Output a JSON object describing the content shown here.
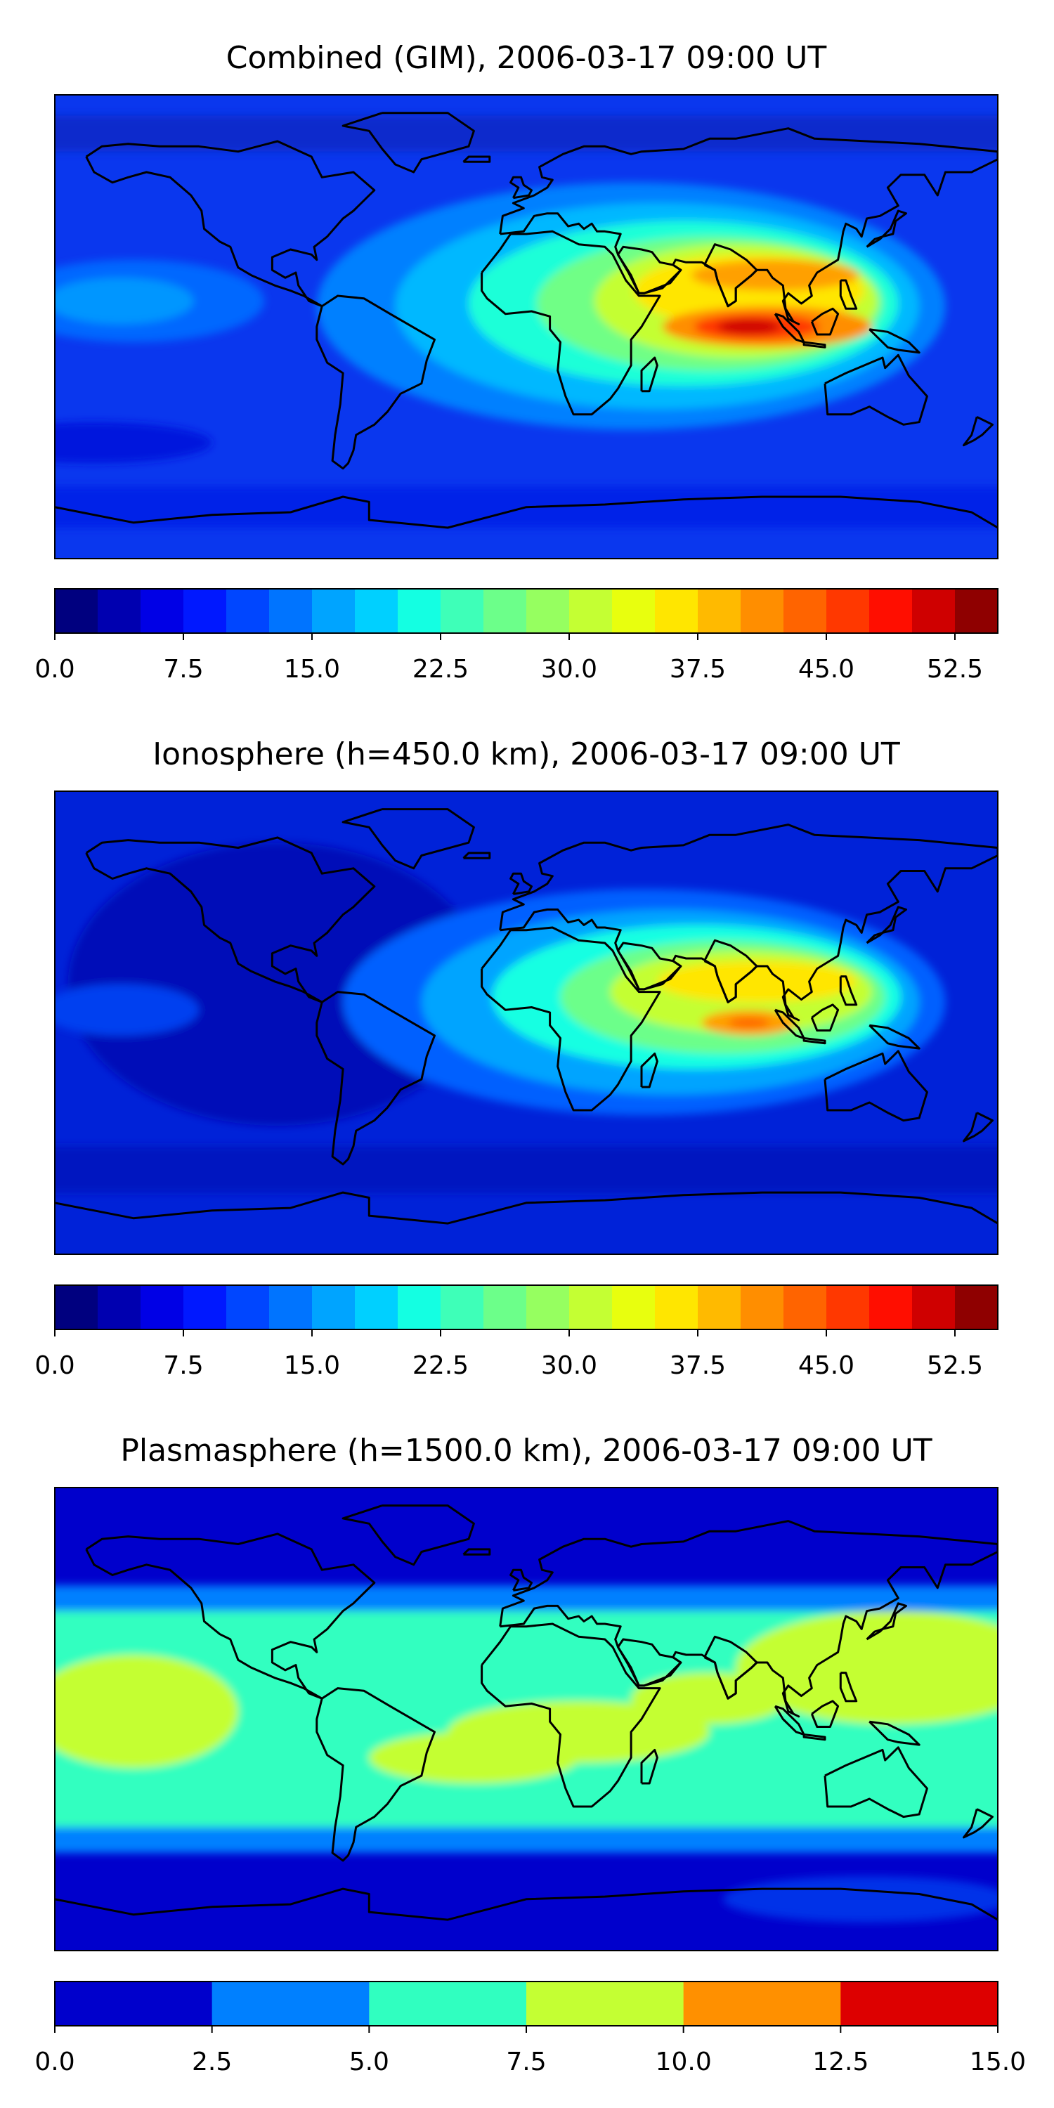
{
  "panels": [
    {
      "id": "combined",
      "title": "Combined (GIM), 2006-03-17 09:00 UT",
      "colorbar": {
        "colors": [
          "#00007f",
          "#0000b0",
          "#0000e6",
          "#0018ff",
          "#0046ff",
          "#0074ff",
          "#00a4ff",
          "#00d0ff",
          "#14ffe2",
          "#3effb8",
          "#6cff8a",
          "#96ff60",
          "#c4ff33",
          "#e8ff0e",
          "#ffe600",
          "#ffba00",
          "#ff8e00",
          "#ff6400",
          "#ff3800",
          "#ff0e00",
          "#cf0000",
          "#8f0000"
        ],
        "ticks": [
          "0.0",
          "7.5",
          "15.0",
          "22.5",
          "30.0",
          "37.5",
          "45.0",
          "52.5"
        ]
      },
      "field": {
        "background": "#0a37ee",
        "features": [
          {
            "type": "band",
            "lat": [
              -62,
              -78
            ],
            "color": "#0020e8"
          },
          {
            "type": "band",
            "lat": [
              82,
              68
            ],
            "color": "#0f2ccc"
          },
          {
            "type": "blob",
            "lon": -150,
            "lat": 10,
            "rx": 50,
            "ry": 16,
            "color": "#0068ff"
          },
          {
            "type": "blob",
            "lon": -155,
            "lat": 10,
            "rx": 28,
            "ry": 9,
            "color": "#0096ff"
          },
          {
            "type": "blob",
            "lon": -165,
            "lat": -45,
            "rx": 45,
            "ry": 8,
            "color": "#0016dd"
          },
          {
            "type": "blob",
            "lon": 40,
            "lat": 8,
            "rx": 120,
            "ry": 48,
            "color": "#0080ff"
          },
          {
            "type": "blob",
            "lon": 50,
            "lat": 8,
            "rx": 100,
            "ry": 40,
            "color": "#00b8ff"
          },
          {
            "type": "blob",
            "lon": 60,
            "lat": 9,
            "rx": 82,
            "ry": 32,
            "color": "#1effd8"
          },
          {
            "type": "blob",
            "lon": 70,
            "lat": 9,
            "rx": 66,
            "ry": 26,
            "color": "#70ff86"
          },
          {
            "type": "blob",
            "lon": 80,
            "lat": 10,
            "rx": 54,
            "ry": 22,
            "color": "#c4ff33"
          },
          {
            "type": "blob",
            "lon": 85,
            "lat": 14,
            "rx": 44,
            "ry": 14,
            "color": "#ffe600"
          },
          {
            "type": "blob",
            "lon": 95,
            "lat": 20,
            "rx": 32,
            "ry": 6,
            "color": "#ffa000"
          },
          {
            "type": "blob",
            "lon": 92,
            "lat": 0,
            "rx": 40,
            "ry": 8,
            "color": "#ff8e00"
          },
          {
            "type": "blob",
            "lon": 88,
            "lat": 0,
            "rx": 24,
            "ry": 5,
            "color": "#ff3800"
          },
          {
            "type": "blob",
            "lon": 85,
            "lat": 0,
            "rx": 12,
            "ry": 3,
            "color": "#cf0000"
          }
        ]
      }
    },
    {
      "id": "ionosphere",
      "title": "Ionosphere  (h=450.0 km), 2006-03-17 09:00 UT",
      "colorbar": {
        "colors": [
          "#00007f",
          "#0000b0",
          "#0000e6",
          "#0018ff",
          "#0046ff",
          "#0074ff",
          "#00a4ff",
          "#00d0ff",
          "#14ffe2",
          "#3effb8",
          "#6cff8a",
          "#96ff60",
          "#c4ff33",
          "#e8ff0e",
          "#ffe600",
          "#ffba00",
          "#ff8e00",
          "#ff6400",
          "#ff3800",
          "#ff0e00",
          "#cf0000",
          "#8f0000"
        ],
        "ticks": [
          "0.0",
          "7.5",
          "15.0",
          "22.5",
          "30.0",
          "37.5",
          "45.0",
          "52.5"
        ]
      },
      "field": {
        "background": "#0022d8",
        "features": [
          {
            "type": "band",
            "lat": [
              -48,
              -66
            ],
            "color": "#0014c0"
          },
          {
            "type": "blob",
            "lon": -95,
            "lat": 15,
            "rx": 80,
            "ry": 55,
            "color": "#0010b8"
          },
          {
            "type": "blob",
            "lon": -155,
            "lat": 5,
            "rx": 30,
            "ry": 10,
            "color": "#0040f0"
          },
          {
            "type": "blob",
            "lon": 45,
            "lat": 8,
            "rx": 115,
            "ry": 44,
            "color": "#0060ff"
          },
          {
            "type": "blob",
            "lon": 55,
            "lat": 8,
            "rx": 95,
            "ry": 36,
            "color": "#00a4ff"
          },
          {
            "type": "blob",
            "lon": 65,
            "lat": 10,
            "rx": 78,
            "ry": 28,
            "color": "#14ffe2"
          },
          {
            "type": "blob",
            "lon": 75,
            "lat": 10,
            "rx": 62,
            "ry": 22,
            "color": "#6cff8a"
          },
          {
            "type": "blob",
            "lon": 82,
            "lat": 12,
            "rx": 50,
            "ry": 16,
            "color": "#c4ff33"
          },
          {
            "type": "blob",
            "lon": 88,
            "lat": 16,
            "rx": 38,
            "ry": 8,
            "color": "#ffe600"
          },
          {
            "type": "blob",
            "lon": 85,
            "lat": 0,
            "rx": 18,
            "ry": 5,
            "color": "#ffa000"
          },
          {
            "type": "blob",
            "lon": 85,
            "lat": 0,
            "rx": 8,
            "ry": 2,
            "color": "#ff6400"
          }
        ]
      }
    },
    {
      "id": "plasmasphere",
      "title": "Plasmasphere (h=1500.0 km), 2006-03-17 09:00 UT",
      "colorbar": {
        "colors": [
          "#0000cc",
          "#0080ff",
          "#30ffc0",
          "#c4ff33",
          "#ff9000",
          "#dd0000"
        ],
        "ticks": [
          "0.0",
          "2.5",
          "5.0",
          "7.5",
          "10.0",
          "12.5",
          "15.0"
        ]
      },
      "field": {
        "background": "#0000cc",
        "features": [
          {
            "type": "band",
            "lat": [
              52,
              -52
            ],
            "color": "#0080ff"
          },
          {
            "type": "band",
            "lat": [
              42,
              -42
            ],
            "color": "#30ffc0"
          },
          {
            "type": "blob",
            "lon": -150,
            "lat": 3,
            "rx": 40,
            "ry": 22,
            "color": "#c4ff33"
          },
          {
            "type": "blob",
            "lon": -20,
            "lat": -15,
            "rx": 40,
            "ry": 10,
            "color": "#c4ff33"
          },
          {
            "type": "blob",
            "lon": 20,
            "lat": -5,
            "rx": 50,
            "ry": 12,
            "color": "#c4ff33"
          },
          {
            "type": "blob",
            "lon": 70,
            "lat": 8,
            "rx": 30,
            "ry": 10,
            "color": "#c4ff33"
          },
          {
            "type": "blob",
            "lon": 140,
            "lat": 20,
            "rx": 60,
            "ry": 22,
            "color": "#c4ff33"
          },
          {
            "type": "blob",
            "lon": 130,
            "lat": -70,
            "rx": 55,
            "ry": 9,
            "color": "#0030e8"
          }
        ]
      }
    }
  ]
}
